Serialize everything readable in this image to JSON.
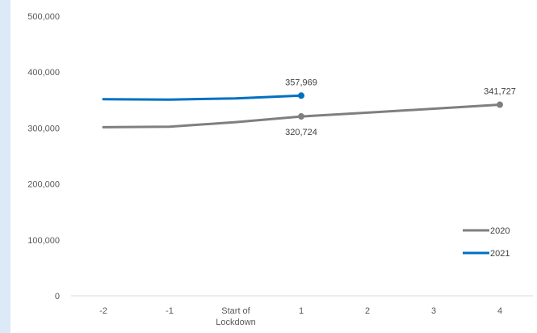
{
  "chart_data": {
    "type": "line",
    "title": "",
    "xlabel": "",
    "ylabel": "",
    "categories": [
      "-2",
      "-1",
      "Start of Lockdown",
      "1",
      "2",
      "3",
      "4"
    ],
    "y_ticks": [
      "0",
      "100,000",
      "200,000",
      "300,000",
      "400,000",
      "500,000"
    ],
    "ylim": [
      0,
      500000
    ],
    "grid": false,
    "legend_position": "bottom-right",
    "series": [
      {
        "name": "2020",
        "color": "#7f7f7f",
        "values": [
          301500,
          302500,
          310500,
          320724,
          327500,
          334500,
          341727
        ]
      },
      {
        "name": "2021",
        "color": "#0070c0",
        "values": [
          351500,
          350800,
          353000,
          357969,
          null,
          null,
          null
        ]
      }
    ],
    "annotations": [
      {
        "series": 1,
        "index": 3,
        "text": "357,969",
        "position": "above"
      },
      {
        "series": 0,
        "index": 3,
        "text": "320,724",
        "position": "below"
      },
      {
        "series": 0,
        "index": 6,
        "text": "341,727",
        "position": "above"
      }
    ]
  }
}
